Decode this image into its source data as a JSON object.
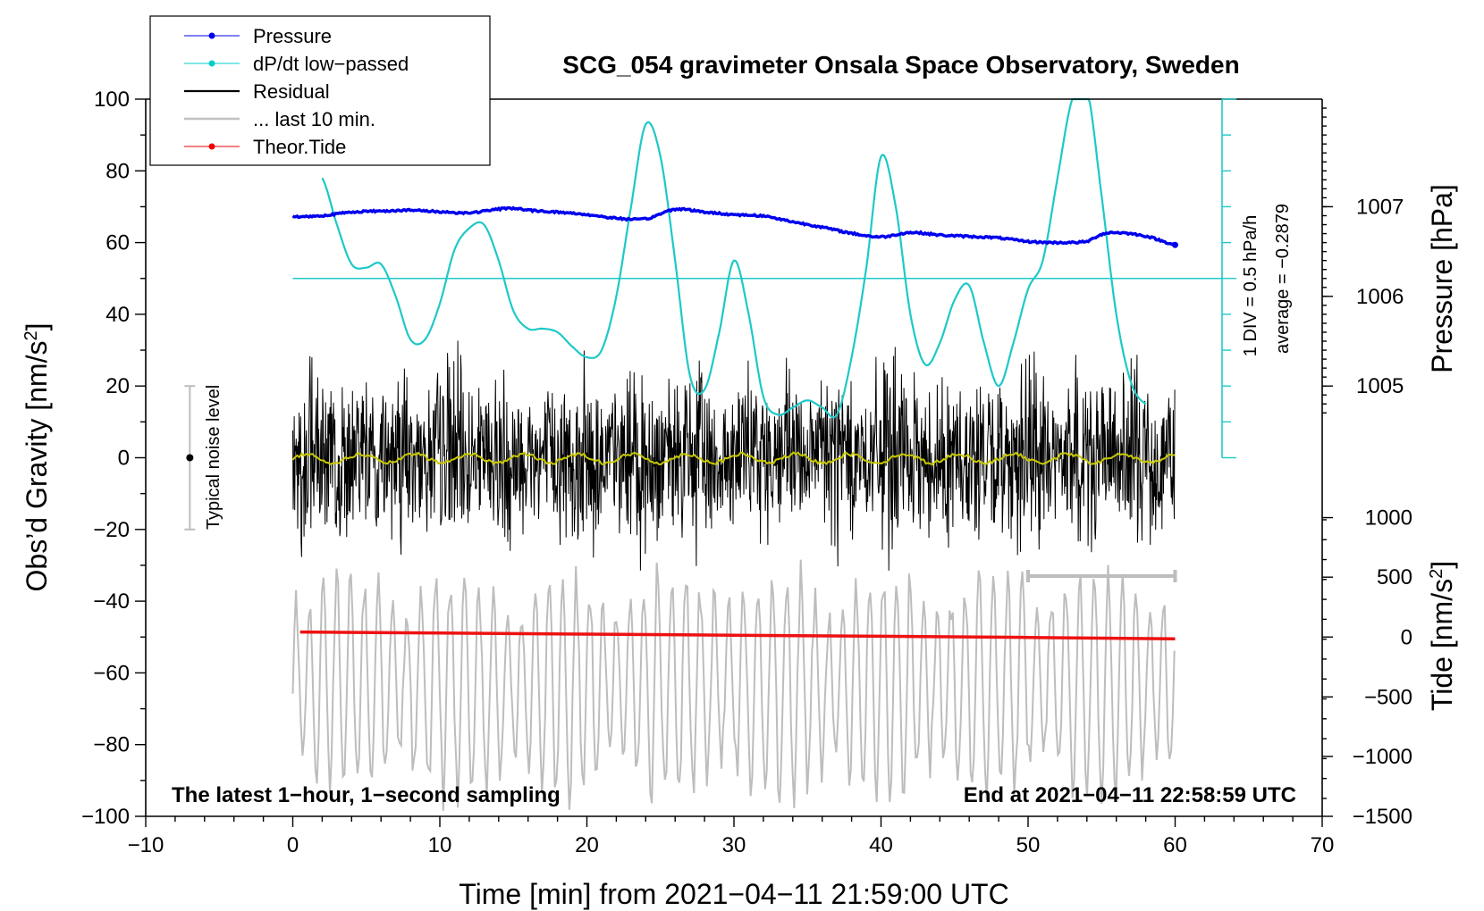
{
  "chart_data": {
    "type": "line",
    "title": "SCG_054 gravimeter Onsala Space Observatory, Sweden",
    "xlabel": "Time [min] from 2021−04−11 21:59:00 UTC",
    "ylabel": "Obs’d Gravity [nm/s",
    "ylabel_sup": "2",
    "ylabel_end": "]",
    "xlim": [
      -10,
      70
    ],
    "ylim": [
      -100,
      100
    ],
    "x_ticks": [
      -10,
      0,
      10,
      20,
      30,
      40,
      50,
      60,
      70
    ],
    "x_tick_labels": [
      "−10",
      "0",
      "10",
      "20",
      "30",
      "40",
      "50",
      "60",
      "70"
    ],
    "y_ticks": [
      -100,
      -80,
      -60,
      -40,
      -20,
      0,
      20,
      40,
      60,
      80,
      100
    ],
    "y_tick_labels": [
      "−100",
      "−80",
      "−60",
      "−40",
      "−20",
      "0",
      "20",
      "40",
      "60",
      "80",
      "100"
    ],
    "pressure_axis": {
      "label": "Pressure [hPa]",
      "ticks": [
        1005,
        1006,
        1007
      ],
      "tick_labels": [
        "1005",
        "1006",
        "1007"
      ],
      "gravity_equivalent": [
        20,
        45,
        70
      ]
    },
    "tide_axis": {
      "label": "Tide [nm/s",
      "label_sup": "2",
      "label_end": "]",
      "ticks": [
        -1500,
        -1000,
        -500,
        0,
        500,
        1000
      ],
      "tick_labels": [
        "−1500",
        "−1000",
        "−500",
        "0",
        "500",
        "1000"
      ],
      "gravity_equivalent": [
        -100,
        -83.3,
        -66.7,
        -50,
        -33.3,
        -16.7
      ]
    },
    "dpdt_scale": {
      "ticks_gravity": [
        0,
        10,
        20,
        30,
        40,
        50,
        60,
        70,
        80,
        90,
        100
      ],
      "reference_gravity": 50,
      "label_div": "1 DIV = 0.5 hPa/h",
      "label_avg": "average = −0.2879"
    },
    "legend": [
      {
        "label": "Pressure",
        "color": "#0000ee",
        "marker": true
      },
      {
        "label": "dP/dt low−passed",
        "color": "#00cccc",
        "marker": true
      },
      {
        "label": "Residual",
        "color": "#000000",
        "marker": false
      },
      {
        "label": "... last 10 min.",
        "color": "#c0c0c0",
        "marker": false
      },
      {
        "label": "Theor.Tide",
        "color": "#ee0000",
        "marker": true
      }
    ],
    "colors": {
      "pressure": "#0000ee",
      "dpdt": "#1ec8c8",
      "residual": "#000000",
      "smoothed": "#c8c800",
      "last10": "#bdbdbd",
      "tide": "#ee1111"
    },
    "series": [
      {
        "name": "Pressure",
        "x": [
          0,
          2,
          4,
          6,
          8,
          10,
          12,
          14,
          15,
          16,
          18,
          20,
          22,
          24,
          26,
          28,
          30,
          32,
          34,
          36,
          38,
          40,
          42,
          44,
          46,
          48,
          50,
          52,
          54,
          55,
          56,
          58,
          60
        ],
        "y": [
          67.2,
          67.5,
          68.5,
          68.8,
          69.0,
          68.6,
          68.3,
          69.3,
          69.6,
          69.0,
          68.5,
          67.8,
          66.8,
          66.6,
          69.3,
          68.5,
          67.8,
          67.4,
          65.8,
          64.3,
          62.6,
          61.6,
          62.8,
          62.1,
          61.7,
          61.3,
          60.3,
          60.0,
          60.3,
          62.3,
          62.8,
          61.8,
          59.5
        ]
      },
      {
        "name": "dP/dt low−passed",
        "x": [
          2,
          3,
          4,
          5,
          6,
          7,
          8,
          9,
          10,
          11,
          12,
          13,
          14,
          15,
          16,
          17,
          18,
          19,
          20,
          21,
          22,
          23,
          24,
          25,
          26,
          27,
          28,
          29,
          30,
          31,
          32,
          33,
          34,
          35,
          36,
          37,
          38,
          39,
          40,
          41,
          42,
          43,
          44,
          45,
          46,
          47,
          48,
          49,
          50,
          51,
          52,
          53,
          54,
          55,
          56,
          57,
          58
        ],
        "y": [
          78,
          65,
          54,
          53,
          54,
          45,
          33,
          33,
          43,
          58,
          64,
          65,
          55,
          41,
          36,
          36,
          35,
          31,
          28,
          30,
          45,
          70,
          93,
          84,
          55,
          23,
          19,
          35,
          55,
          40,
          17,
          12,
          14,
          16,
          14,
          12,
          28,
          53,
          84,
          70,
          40,
          26,
          32,
          44,
          48,
          32,
          20,
          32,
          47,
          55,
          78,
          100,
          103,
          73,
          40,
          21,
          15
        ]
      },
      {
        "name": "Residual",
        "x_range": [
          0,
          60
        ],
        "amplitude": "approx ±40"
      },
      {
        "name": "... last 10 min.",
        "x_range": [
          0,
          60
        ],
        "center": -63,
        "amplitude": "approx ±30"
      },
      {
        "name": "Theor.Tide",
        "x": [
          0.5,
          10,
          20,
          30,
          40,
          50,
          60
        ],
        "y": [
          -48.6,
          -48.9,
          -49.2,
          -49.5,
          -49.8,
          -50.1,
          -50.5
        ]
      }
    ],
    "noise_marker": {
      "x": -7,
      "center": 0,
      "half_range": 20,
      "label": "Typical noise level"
    },
    "range_bar": {
      "x": [
        50,
        60
      ],
      "y": -33
    },
    "annotations": {
      "bottom_left": "The latest 1−hour, 1−second sampling",
      "bottom_right": "End at 2021−04−11 22:58:59 UTC"
    }
  }
}
